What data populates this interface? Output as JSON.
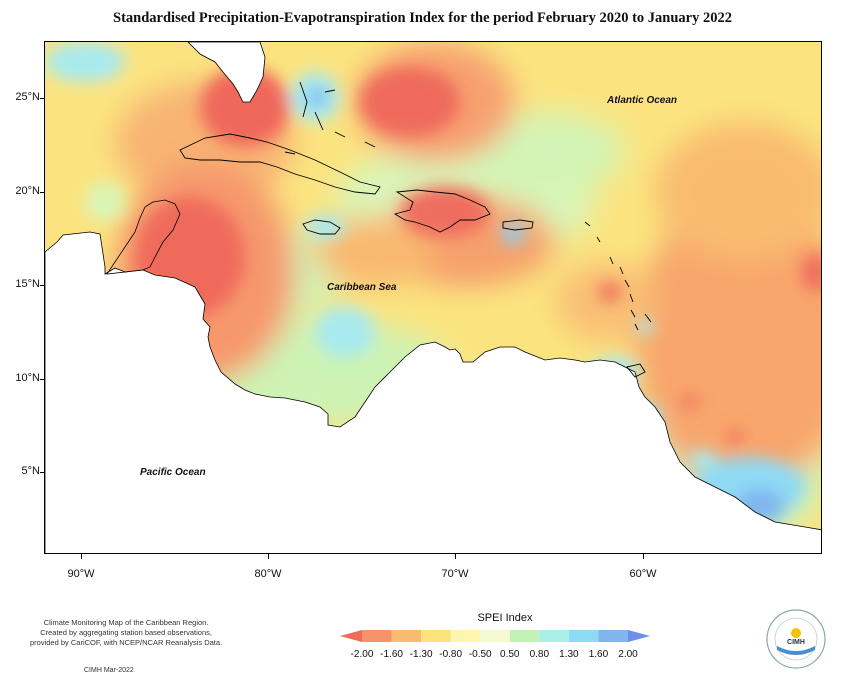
{
  "title": "Standardised Precipitation-Evapotranspiration Index for the period February 2020 to January 2022",
  "map": {
    "lat_ticks": [
      "25°N",
      "20°N",
      "15°N",
      "10°N",
      "5°N"
    ],
    "lon_ticks": [
      "90°W",
      "80°W",
      "70°W",
      "60°W"
    ],
    "ocean_labels": {
      "atlantic": "Atlantic Ocean",
      "caribbean": "Caribbean Sea",
      "pacific": "Pacific Ocean"
    }
  },
  "legend": {
    "title": "SPEI Index",
    "ticks": [
      "-2.00",
      "-1.60",
      "-1.30",
      "-0.80",
      "-0.50",
      "0.50",
      "0.80",
      "1.30",
      "1.60",
      "2.00"
    ],
    "colors": [
      "#f06c5a",
      "#f5936a",
      "#f9bb6f",
      "#fbe27a",
      "#fdf5b0",
      "#f4f9d2",
      "#c4f2b4",
      "#a8f0e8",
      "#8edaf5",
      "#7fb6ee",
      "#6d8fe8"
    ]
  },
  "footer": {
    "note_line1": "Climate Monitoring Map of the Caribbean Region.",
    "note_line2": "Created by aggregating station based observations,",
    "note_line3": "provided by CariCOF, with NCEP/NCAR Reanalysis Data.",
    "credit": "CIMH Mar-2022",
    "logo_text": "CIMH"
  }
}
